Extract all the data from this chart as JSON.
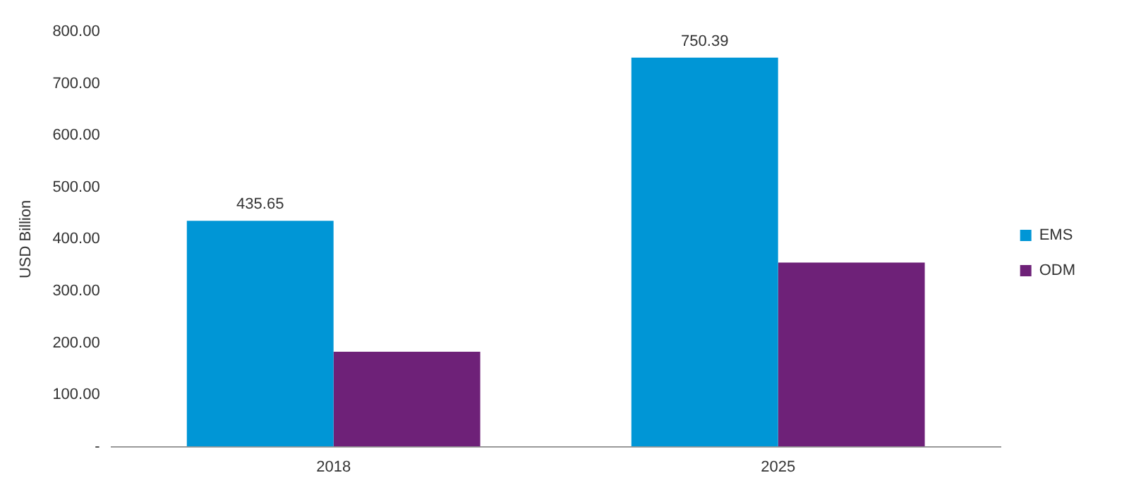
{
  "chart_data": {
    "type": "bar",
    "ylabel": "USD Billion",
    "categories": [
      "2018",
      "2025"
    ],
    "series": [
      {
        "name": "EMS",
        "color": "#0096d6",
        "values": [
          435.65,
          750.39
        ],
        "value_labels": [
          "435.65",
          "750.39"
        ]
      },
      {
        "name": "ODM",
        "color": "#6e2178",
        "values": [
          183,
          355
        ]
      }
    ],
    "ylim": [
      0,
      800
    ],
    "yticks": [
      {
        "value": 0,
        "label": "-"
      },
      {
        "value": 100,
        "label": "100.00"
      },
      {
        "value": 200,
        "label": "200.00"
      },
      {
        "value": 300,
        "label": "300.00"
      },
      {
        "value": 400,
        "label": "400.00"
      },
      {
        "value": 500,
        "label": "500.00"
      },
      {
        "value": 600,
        "label": "600.00"
      },
      {
        "value": 700,
        "label": "700.00"
      },
      {
        "value": 800,
        "label": "800.00"
      }
    ],
    "grid": false,
    "legend": "right"
  }
}
